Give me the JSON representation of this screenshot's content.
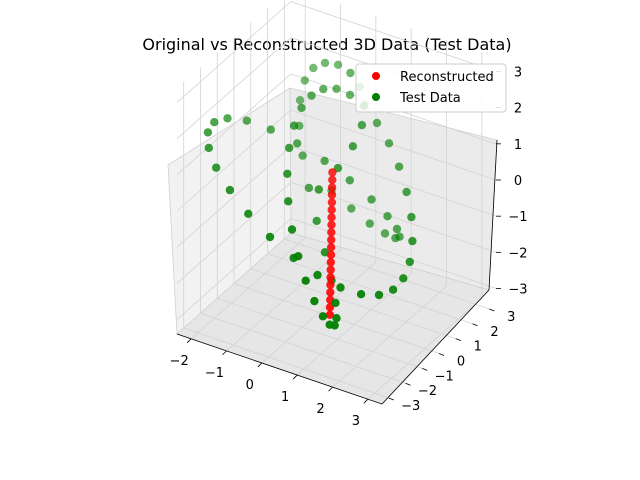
{
  "chart_data": {
    "type": "scatter",
    "title": "Original vs Reconstructed 3D Data (Test Data)",
    "projection": "3d",
    "axes": {
      "x": {
        "ticks": [
          -2,
          -1,
          0,
          1,
          2,
          3
        ],
        "tick_labels": [
          "−2",
          "−1",
          "0",
          "1",
          "2",
          "3"
        ]
      },
      "y": {
        "ticks": [
          -3,
          -2,
          -1,
          0,
          1,
          2,
          3
        ],
        "tick_labels": [
          "−3",
          "−2",
          "−1",
          "0",
          "1",
          "2",
          "3"
        ]
      },
      "z": {
        "ticks": [
          -3,
          -2,
          -1,
          0,
          1,
          2,
          3
        ],
        "tick_labels": [
          "−3",
          "−2",
          "−1",
          "0",
          "1",
          "2",
          "3"
        ]
      }
    },
    "grid": true,
    "legend_position": "top-right",
    "series": [
      {
        "name": "Reconstructed",
        "color": "#ff0000",
        "points": [
          [
            0.55,
            -0.35,
            0.8
          ],
          [
            0.57,
            -0.4,
            0.62
          ],
          [
            0.59,
            -0.45,
            0.44
          ],
          [
            0.61,
            -0.5,
            0.26
          ],
          [
            0.63,
            -0.55,
            0.08
          ],
          [
            0.65,
            -0.6,
            -0.1
          ],
          [
            0.67,
            -0.65,
            -0.28
          ],
          [
            0.69,
            -0.7,
            -0.46
          ],
          [
            0.71,
            -0.75,
            -0.64
          ],
          [
            0.73,
            -0.8,
            -0.82
          ],
          [
            0.75,
            -0.85,
            -1.0
          ],
          [
            0.77,
            -0.9,
            -1.18
          ],
          [
            0.79,
            -0.95,
            -1.36
          ],
          [
            0.81,
            -1.0,
            -1.54
          ],
          [
            0.83,
            -1.05,
            -1.72
          ],
          [
            0.85,
            -1.1,
            -1.9
          ],
          [
            0.87,
            -1.15,
            -2.08
          ],
          [
            0.89,
            -1.2,
            -2.26
          ],
          [
            0.91,
            -1.25,
            -2.44
          ],
          [
            0.93,
            -1.3,
            -2.62
          ]
        ]
      },
      {
        "name": "Test Data",
        "color": "#008000",
        "points": [
          [
            0.0,
            0.0,
            0.0
          ],
          [
            0.33,
            0.44,
            0.52
          ],
          [
            0.55,
            0.87,
            1.02
          ],
          [
            0.62,
            1.26,
            1.47
          ],
          [
            0.53,
            1.6,
            1.86
          ],
          [
            0.28,
            1.86,
            2.16
          ],
          [
            -0.08,
            2.05,
            2.35
          ],
          [
            -0.47,
            2.14,
            2.41
          ],
          [
            -0.84,
            2.14,
            2.34
          ],
          [
            -1.13,
            2.05,
            2.14
          ],
          [
            -1.28,
            1.86,
            1.82
          ],
          [
            -1.29,
            1.6,
            1.38
          ],
          [
            -1.15,
            1.26,
            0.86
          ],
          [
            -0.87,
            0.87,
            0.29
          ],
          [
            -0.49,
            0.44,
            -0.3
          ],
          [
            -0.06,
            0.0,
            -0.89
          ],
          [
            0.38,
            -0.44,
            -1.43
          ],
          [
            0.77,
            -0.87,
            -1.9
          ],
          [
            1.07,
            -1.26,
            -2.26
          ],
          [
            1.26,
            -1.6,
            -2.48
          ],
          [
            1.33,
            -1.86,
            -2.55
          ],
          [
            1.28,
            -2.05,
            -2.47
          ],
          [
            1.13,
            -2.14,
            -2.25
          ],
          [
            0.89,
            -2.14,
            -1.91
          ],
          [
            0.6,
            -2.05,
            -1.48
          ],
          [
            0.3,
            -1.86,
            -0.98
          ],
          [
            0.0,
            -1.6,
            -0.45
          ],
          [
            -0.27,
            -1.26,
            0.1
          ],
          [
            -0.48,
            -0.87,
            0.63
          ],
          [
            -0.63,
            -0.44,
            1.12
          ],
          [
            -0.7,
            0.0,
            1.53
          ],
          [
            -0.7,
            0.44,
            1.84
          ],
          [
            -0.62,
            0.87,
            2.03
          ],
          [
            -0.47,
            1.26,
            2.1
          ],
          [
            -0.26,
            1.6,
            2.04
          ],
          [
            0.0,
            1.86,
            1.85
          ],
          [
            0.3,
            2.05,
            1.56
          ],
          [
            0.63,
            2.14,
            1.17
          ],
          [
            0.97,
            2.14,
            0.72
          ],
          [
            1.3,
            2.05,
            0.22
          ],
          [
            1.6,
            1.86,
            -0.3
          ],
          [
            1.86,
            1.6,
            -0.8
          ],
          [
            2.05,
            1.26,
            -1.26
          ],
          [
            2.16,
            0.87,
            -1.64
          ],
          [
            2.18,
            0.44,
            -1.91
          ],
          [
            2.1,
            0.0,
            -2.07
          ],
          [
            1.91,
            -0.44,
            -2.1
          ],
          [
            1.61,
            -0.87,
            -2.0
          ],
          [
            1.21,
            -1.26,
            -1.79
          ],
          [
            0.72,
            -1.6,
            -1.47
          ],
          [
            0.17,
            -1.86,
            -1.07
          ],
          [
            -0.41,
            -2.05,
            -0.61
          ],
          [
            -0.98,
            -2.14,
            -0.12
          ],
          [
            -1.5,
            -2.14,
            0.36
          ],
          [
            -1.93,
            -2.05,
            0.8
          ],
          [
            -2.23,
            -1.86,
            1.17
          ],
          [
            -2.38,
            -1.6,
            1.44
          ],
          [
            -2.36,
            -1.26,
            1.59
          ],
          [
            -2.17,
            -0.87,
            1.6
          ],
          [
            -1.83,
            -0.44,
            1.47
          ],
          [
            -1.36,
            0.0,
            1.2
          ],
          [
            -0.82,
            0.44,
            0.82
          ],
          [
            -0.25,
            0.87,
            0.35
          ],
          [
            0.28,
            1.26,
            -0.17
          ],
          [
            0.73,
            1.6,
            -0.69
          ],
          [
            1.06,
            1.86,
            -1.15
          ],
          [
            1.24,
            2.05,
            -1.52
          ],
          [
            1.27,
            2.14,
            -1.76
          ],
          [
            1.15,
            2.14,
            -1.84
          ],
          [
            0.9,
            2.05,
            -1.76
          ],
          [
            0.56,
            1.86,
            -1.52
          ],
          [
            0.16,
            1.6,
            -1.13
          ],
          [
            -0.24,
            1.26,
            -0.63
          ]
        ]
      }
    ]
  }
}
